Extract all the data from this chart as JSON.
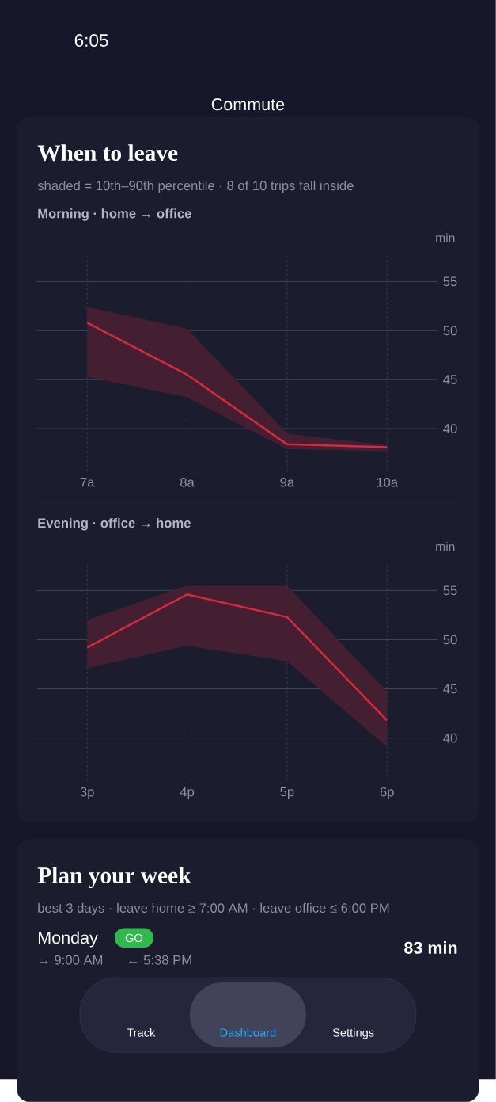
{
  "chart_data": [
    {
      "type": "other",
      "title": "When to leave",
      "subtitle": "shaded = 10th–90th percentile · 8 of 10 trips fall inside",
      "annotations": [
        "6:05",
        "Commute"
      ]
    },
    {
      "type": "line",
      "title": "Morning · home → office",
      "ylabel": "min",
      "categories": [
        "7a",
        "8a",
        "9a",
        "10a"
      ],
      "series": [
        {
          "color": "#d42a3f",
          "values": [
            50.8,
            45.5,
            38.4,
            38.1
          ],
          "upper": [
            52.4,
            50.2,
            39.5,
            38.3
          ],
          "lower": [
            45.3,
            43.2,
            37.9,
            37.7
          ]
        }
      ],
      "ylim": [
        35.6,
        57.6
      ],
      "yticks": [
        40,
        45,
        50,
        55
      ],
      "grid": true,
      "marker": "none",
      "line_style": "solid"
    },
    {
      "type": "line",
      "title": "Evening · office → home",
      "ylabel": "min",
      "categories": [
        "3p",
        "4p",
        "5p",
        "6p"
      ],
      "series": [
        {
          "color": "#d42a3f",
          "values": [
            49.2,
            54.6,
            52.3,
            41.8
          ],
          "upper": [
            52.0,
            55.5,
            55.5,
            44.7
          ],
          "lower": [
            47.1,
            49.4,
            47.8,
            39.1
          ]
        }
      ],
      "ylim": [
        35.6,
        57.6
      ],
      "yticks": [
        40,
        45,
        50,
        55
      ],
      "grid": true,
      "marker": "none",
      "line_style": "solid"
    },
    {
      "type": "other",
      "title": "Plan your week",
      "subtitle": "best 3 days · leave home ≥ 7:00 AM · leave office ≤ 6:00 PM",
      "annotations": [
        "Monday",
        "GO",
        "→ 9:00 AM",
        "← 5:38 PM",
        "83 min",
        "Track",
        "Dashboard",
        "Settings"
      ]
    }
  ]
}
